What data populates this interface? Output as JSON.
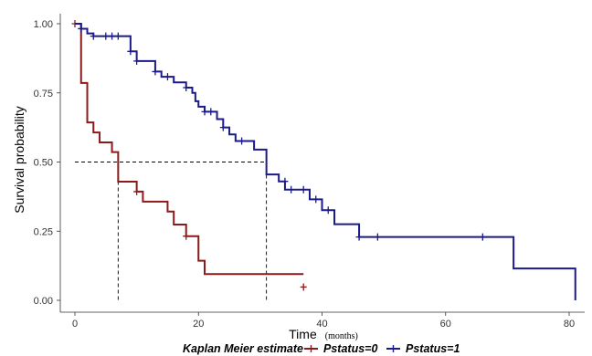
{
  "chart_data": {
    "type": "line",
    "subtype": "kaplan-meier step",
    "xlabel": "Time",
    "xlabel_unit": "(months)",
    "ylabel": "Survival probability",
    "xlim": [
      0,
      82
    ],
    "ylim": [
      0,
      1.0
    ],
    "xticks": [
      0,
      20,
      40,
      60,
      80
    ],
    "yticks": [
      0.0,
      0.25,
      0.5,
      0.75,
      1.0
    ],
    "ytick_labels": [
      "0.00",
      "0.25",
      "0.50",
      "0.75",
      "1.00"
    ],
    "grid": false,
    "legend": {
      "title": "Kaplan Meier estimate",
      "position": "bottom",
      "entries": [
        "Pstatus=0",
        "Pstatus=1"
      ]
    },
    "median_reference": {
      "y": 0.5,
      "x_values": [
        7,
        31
      ]
    },
    "series": [
      {
        "name": "Pstatus=0",
        "color": "#8B1A1A",
        "steps": [
          [
            0,
            1.0
          ],
          [
            1,
            0.786
          ],
          [
            2,
            0.643
          ],
          [
            3,
            0.607
          ],
          [
            4,
            0.571
          ],
          [
            6,
            0.536
          ],
          [
            7,
            0.429
          ],
          [
            10,
            0.393
          ],
          [
            11,
            0.357
          ],
          [
            15,
            0.321
          ],
          [
            16,
            0.274
          ],
          [
            18,
            0.232
          ],
          [
            20,
            0.143
          ],
          [
            21,
            0.095
          ],
          [
            37,
            0.095
          ]
        ],
        "censored": [
          [
            0,
            1.0
          ],
          [
            10,
            0.393
          ],
          [
            18,
            0.232
          ],
          [
            37,
            0.048
          ]
        ]
      },
      {
        "name": "Pstatus=1",
        "color": "#1A1A8B",
        "steps": [
          [
            0,
            1.0
          ],
          [
            1,
            0.982
          ],
          [
            2,
            0.965
          ],
          [
            3,
            0.955
          ],
          [
            9,
            0.9
          ],
          [
            10,
            0.865
          ],
          [
            13,
            0.827
          ],
          [
            14,
            0.808
          ],
          [
            16,
            0.788
          ],
          [
            18,
            0.769
          ],
          [
            19,
            0.75
          ],
          [
            19.5,
            0.72
          ],
          [
            20,
            0.7
          ],
          [
            21,
            0.682
          ],
          [
            23,
            0.655
          ],
          [
            24,
            0.625
          ],
          [
            25,
            0.6
          ],
          [
            26,
            0.576
          ],
          [
            29,
            0.545
          ],
          [
            31,
            0.455
          ],
          [
            33,
            0.43
          ],
          [
            34,
            0.4
          ],
          [
            38,
            0.365
          ],
          [
            40,
            0.326
          ],
          [
            42,
            0.275
          ],
          [
            46,
            0.229
          ],
          [
            71,
            0.115
          ],
          [
            81,
            0.0
          ]
        ],
        "censored": [
          [
            1,
            0.982
          ],
          [
            3,
            0.955
          ],
          [
            5,
            0.955
          ],
          [
            6,
            0.955
          ],
          [
            7,
            0.955
          ],
          [
            9,
            0.9
          ],
          [
            10,
            0.865
          ],
          [
            13,
            0.827
          ],
          [
            15,
            0.808
          ],
          [
            18,
            0.769
          ],
          [
            21,
            0.682
          ],
          [
            22,
            0.682
          ],
          [
            24,
            0.625
          ],
          [
            27,
            0.576
          ],
          [
            34,
            0.43
          ],
          [
            35,
            0.4
          ],
          [
            37,
            0.4
          ],
          [
            39,
            0.365
          ],
          [
            41,
            0.326
          ],
          [
            46,
            0.229
          ],
          [
            49,
            0.229
          ],
          [
            66,
            0.229
          ]
        ]
      }
    ]
  }
}
